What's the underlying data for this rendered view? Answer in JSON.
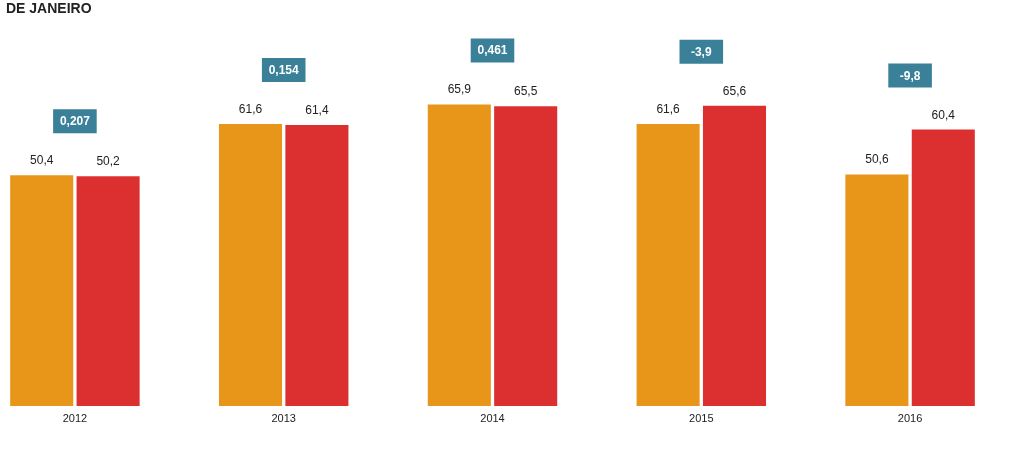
{
  "chart_data": {
    "type": "bar",
    "title": "DE JANEIRO",
    "categories": [
      "2012",
      "2013",
      "2014",
      "2015",
      "2016"
    ],
    "series": [
      {
        "color": "#e8961a",
        "values": [
          50.4,
          61.6,
          65.9,
          61.6,
          50.6
        ],
        "value_labels": [
          "50,4",
          "61,6",
          "65,9",
          "61,6",
          "50,6"
        ]
      },
      {
        "color": "#dc3030",
        "values": [
          50.2,
          61.4,
          65.5,
          65.6,
          60.4
        ],
        "value_labels": [
          "50,2",
          "61,4",
          "65,5",
          "65,6",
          "60,4"
        ]
      }
    ],
    "annotations": [
      "0,207",
      "0,154",
      "0,461",
      "-3,9",
      "-9,8"
    ],
    "legend": false,
    "grid": false
  }
}
